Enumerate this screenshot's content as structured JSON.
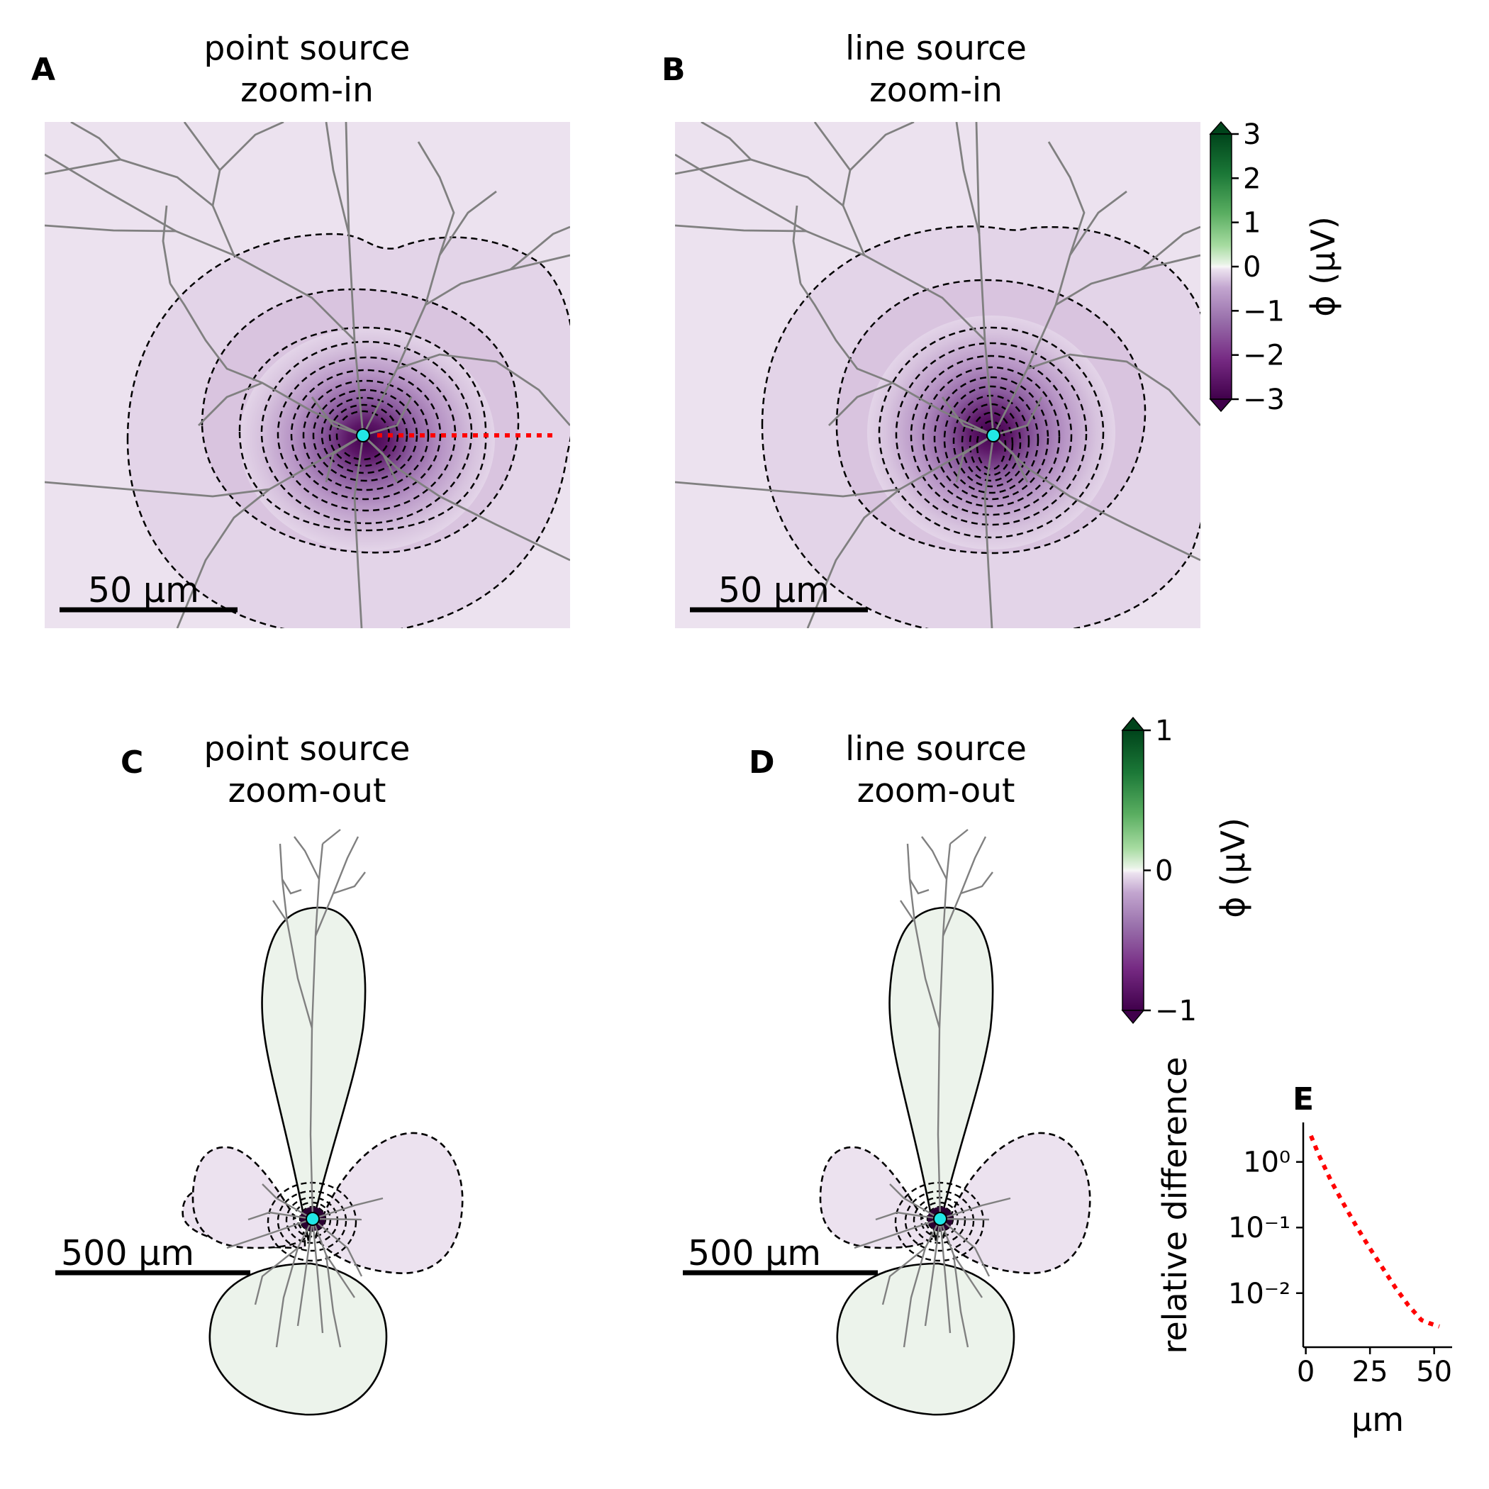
{
  "panels": [
    {
      "letter": "A",
      "title_line1": "point source",
      "title_line2": "zoom-in",
      "scalebar": "50 µm"
    },
    {
      "letter": "B",
      "title_line1": "line source",
      "title_line2": "zoom-in",
      "scalebar": "50 µm"
    },
    {
      "letter": "C",
      "title_line1": "point source",
      "title_line2": "zoom-out",
      "scalebar": "500 µm"
    },
    {
      "letter": "D",
      "title_line1": "line source",
      "title_line2": "zoom-out",
      "scalebar": "500 µm"
    }
  ],
  "colorbars": [
    {
      "label": "ϕ (µV)",
      "ticks": [
        "3",
        "2",
        "1",
        "0",
        "−1",
        "−2",
        "−3"
      ],
      "vmin": -3,
      "vmax": 3,
      "colormap": "PRGn"
    },
    {
      "label": "ϕ (µV)",
      "ticks": [
        "1",
        "0",
        "−1"
      ],
      "vmin": -1,
      "vmax": 1,
      "colormap": "PRGn"
    }
  ],
  "colors": {
    "neuron": "#808080",
    "source_marker": "#22e6e6",
    "dotted_line": "#ff0000",
    "dark_purple": "#40004b",
    "light_purple": "#ece2ef",
    "light_green": "#ecf3eb",
    "dark_green": "#00441b"
  },
  "chart_data": {
    "type": "line",
    "panel_letter": "E",
    "xlabel": "µm",
    "ylabel": "relative difference",
    "yscale": "log",
    "x_ticks": [
      "0",
      "25",
      "50"
    ],
    "y_ticks": [
      "10⁰",
      "10⁻¹",
      "10⁻²"
    ],
    "xlim": [
      -1,
      57
    ],
    "ylim": [
      0.0015,
      4
    ],
    "series": [
      {
        "style": "dotted",
        "color": "#ff0000",
        "x": [
          2,
          5,
          10,
          15,
          20,
          25,
          30,
          35,
          40,
          45,
          48,
          52
        ],
        "y": [
          2.5,
          1.3,
          0.5,
          0.22,
          0.1,
          0.048,
          0.024,
          0.012,
          0.0065,
          0.0039,
          0.0035,
          0.0031
        ]
      }
    ]
  }
}
